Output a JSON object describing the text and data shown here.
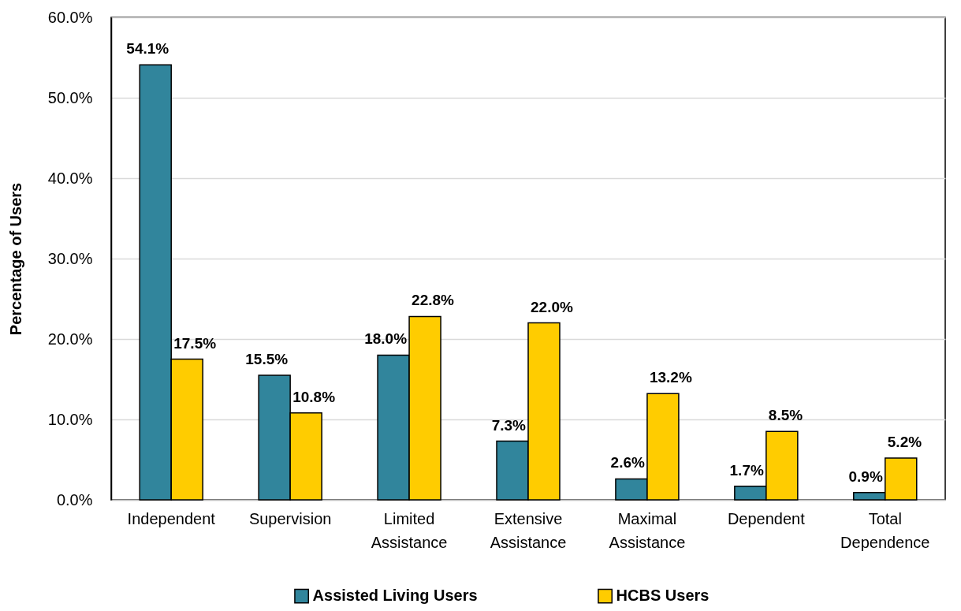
{
  "chart_data": {
    "type": "bar",
    "ylabel": "Percentage  of Users",
    "categories": [
      "Independent",
      "Supervision",
      "Limited Assistance",
      "Extensive Assistance",
      "Maximal Assistance",
      "Dependent",
      "Total Dependence"
    ],
    "series": [
      {
        "name": "Assisted Living Users",
        "color": "#31859c",
        "values": [
          54.1,
          15.5,
          18.0,
          7.3,
          2.6,
          1.7,
          0.9
        ],
        "value_labels": [
          "54.1%",
          "15.5%",
          "18.0%",
          "7.3%",
          "2.6%",
          "1.7%",
          "0.9%"
        ]
      },
      {
        "name": "HCBS Users",
        "color": "#ffcc00",
        "values": [
          17.5,
          10.8,
          22.8,
          22.0,
          13.2,
          8.5,
          5.2
        ],
        "value_labels": [
          "17.5%",
          "10.8%",
          "22.8%",
          "22.0%",
          "13.2%",
          "8.5%",
          "5.2%"
        ]
      }
    ],
    "ylim": [
      0,
      60
    ],
    "yticks": [
      {
        "value": 0,
        "label": "0.0%"
      },
      {
        "value": 10,
        "label": "10.0%"
      },
      {
        "value": 20,
        "label": "20.0%"
      },
      {
        "value": 30,
        "label": "30.0%"
      },
      {
        "value": 40,
        "label": "40.0%"
      },
      {
        "value": 50,
        "label": "50.0%"
      },
      {
        "value": 60,
        "label": "60.0%"
      }
    ],
    "grid": "y",
    "legend": "bottom"
  }
}
